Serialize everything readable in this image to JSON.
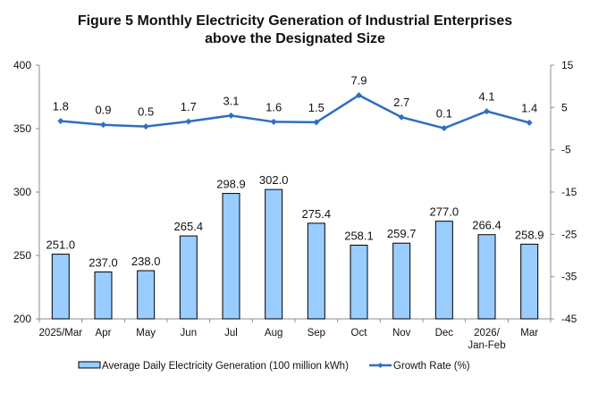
{
  "chart_data": {
    "type": "bar",
    "title_line1": "Figure 5 Monthly Electricity Generation of Industrial Enterprises",
    "title_line2": "above the Designated Size",
    "categories": [
      "2025/Mar",
      "Apr",
      "May",
      "Jun",
      "Jul",
      "Aug",
      "Sep",
      "Oct",
      "Nov",
      "Dec",
      "2026/\nJan-Feb",
      "Mar"
    ],
    "series": [
      {
        "name": "Average Daily Electricity Generation (100 million kWh)",
        "type": "bar",
        "axis": "left",
        "color": "#99CCFF",
        "edge_color": "#000000",
        "values": [
          251.0,
          237.0,
          238.0,
          265.4,
          298.9,
          302.0,
          275.4,
          258.1,
          259.7,
          277.0,
          266.4,
          258.9
        ],
        "labels": [
          "251.0",
          "237.0",
          "238.0",
          "265.4",
          "298.9",
          "302.0",
          "275.4",
          "258.1",
          "259.7",
          "277.0",
          "266.4",
          "258.9"
        ]
      },
      {
        "name": "Growth Rate (%)",
        "type": "line",
        "axis": "right",
        "color": "#2E6FBF",
        "marker": "diamond",
        "values": [
          1.8,
          0.9,
          0.5,
          1.7,
          3.1,
          1.6,
          1.5,
          7.9,
          2.7,
          0.1,
          4.1,
          1.4
        ],
        "labels": [
          "1.8",
          "0.9",
          "0.5",
          "1.7",
          "3.1",
          "1.6",
          "1.5",
          "7.9",
          "2.7",
          "0.1",
          "4.1",
          "1.4"
        ]
      }
    ],
    "y_left": {
      "min": 200,
      "max": 400,
      "ticks": [
        200,
        250,
        300,
        350,
        400
      ]
    },
    "y_right": {
      "min": -45,
      "max": 15,
      "ticks": [
        -45,
        -35,
        -25,
        -15,
        -5,
        5,
        15
      ]
    },
    "xlabel": "",
    "ylabel": "",
    "grid": false,
    "legend_position": "bottom"
  }
}
